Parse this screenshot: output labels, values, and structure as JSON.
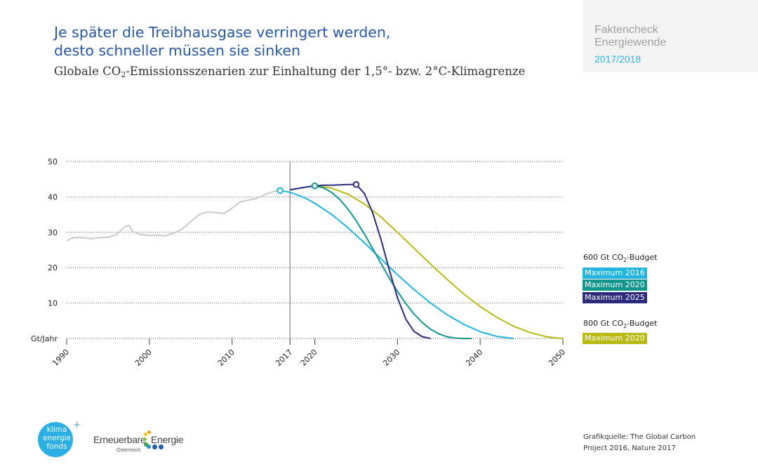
{
  "header": {
    "title_line1": "Je später die Treibhausgase verringert werden,",
    "title_line2": "desto schneller müssen sie sinken",
    "subtitle_pre": "Globale CO",
    "subtitle_sub": "2",
    "subtitle_post": "-Emissionsszenarien zur Einhaltung der 1,5°- bzw. 2°C-Klimagrenze"
  },
  "badge": {
    "line1": "Faktencheck",
    "line2": "Energiewende",
    "line3": "2017/2018"
  },
  "legend": {
    "group1_pre": "600 Gt CO",
    "group1_sub": "2",
    "group1_post": "-Budget",
    "group2_pre": "800 Gt CO",
    "group2_sub": "2",
    "group2_post": "-Budget",
    "items": [
      {
        "label": "Maximum 2016",
        "color": "#1fb5de"
      },
      {
        "label": "Maximum 2020",
        "color": "#12958a"
      },
      {
        "label": "Maximum 2025",
        "color": "#2b2a7c"
      },
      {
        "label": "Maximum 2020",
        "color": "#b9b914"
      }
    ]
  },
  "source": {
    "line1": "Grafikquelle: The Global Carbon",
    "line2": "Project 2016, Nature 2017"
  },
  "logos": {
    "kef_line1": "klima",
    "kef_line2": "energie",
    "kef_line3": "fonds",
    "kef_plus": "+",
    "ee_word1": "Erneuerbare",
    "ee_word2": "Energie",
    "ee_sub": "Österreich"
  },
  "chart_data": {
    "type": "line",
    "ylabel": "Gt/Jahr",
    "xlim": [
      1990,
      2050
    ],
    "ylim": [
      0,
      50
    ],
    "yticks": [
      10,
      20,
      30,
      40,
      50
    ],
    "xticks": [
      "1990",
      "2000",
      "2010",
      "2017",
      "2020",
      "2030",
      "2040",
      "2050"
    ],
    "xtick_values": [
      1990,
      2000,
      2010,
      2017,
      2020,
      2030,
      2040,
      2050
    ],
    "grid": "horizontal dotted",
    "reference_line_x": 2017,
    "historical": {
      "color": "#c8c8c8",
      "x": [
        1990,
        1990.5,
        1991,
        1992,
        1993,
        1994,
        1995,
        1996,
        1997,
        1997.5,
        1998,
        1999,
        2000,
        2001,
        2002,
        2003,
        2004,
        2005,
        2006,
        2007,
        2008,
        2009,
        2010,
        2011,
        2012,
        2013,
        2014,
        2015,
        2016
      ],
      "y": [
        27.5,
        28.3,
        28.5,
        28.5,
        28.2,
        28.5,
        28.6,
        29.3,
        31.5,
        32,
        30.2,
        29.3,
        29.1,
        29.1,
        29.0,
        29.8,
        31.0,
        33.0,
        35.0,
        35.7,
        35.6,
        35.3,
        36.8,
        38.6,
        39.1,
        39.6,
        40.7,
        41.5,
        42.0
      ]
    },
    "series": [
      {
        "name": "Maximum 2016",
        "budget": "600 Gt CO2-Budget",
        "color": "#1fb5de",
        "peak": [
          2015.8,
          41.8
        ],
        "x": [
          2015.8,
          2017,
          2018,
          2019,
          2020,
          2022,
          2024,
          2026,
          2028,
          2030,
          2032,
          2034,
          2036,
          2038,
          2040,
          2042,
          2044
        ],
        "y": [
          41.8,
          41.3,
          40.5,
          39.5,
          38.2,
          35.1,
          31.3,
          27.0,
          22.5,
          18.0,
          13.8,
          10.0,
          6.7,
          4.0,
          1.9,
          0.6,
          0.0
        ]
      },
      {
        "name": "Maximum 2020",
        "budget": "600 Gt CO2-Budget",
        "color": "#12958a",
        "peak": [
          2020,
          43.1
        ],
        "x": [
          2017,
          2018,
          2019,
          2020,
          2021,
          2022,
          2023,
          2024,
          2025,
          2026,
          2027,
          2028,
          2029,
          2030,
          2031,
          2032,
          2033,
          2034,
          2035,
          2036,
          2037,
          2038,
          2039
        ],
        "y": [
          42.0,
          42.4,
          42.8,
          43.1,
          42.6,
          41.3,
          39.3,
          36.6,
          33.3,
          29.5,
          25.4,
          21.2,
          17.1,
          13.3,
          9.9,
          6.9,
          4.5,
          2.6,
          1.3,
          0.5,
          0.1,
          0.0,
          0.0
        ]
      },
      {
        "name": "Maximum 2025",
        "budget": "600 Gt CO2-Budget",
        "color": "#2b2a7c",
        "peak": [
          2025,
          43.5
        ],
        "x": [
          2017,
          2018,
          2019,
          2020,
          2021,
          2022,
          2023,
          2024,
          2025,
          2026,
          2027,
          2028,
          2029,
          2030,
          2031,
          2032,
          2033,
          2034
        ],
        "y": [
          42.0,
          42.4,
          42.8,
          43.1,
          43.3,
          43.3,
          43.4,
          43.5,
          43.5,
          41.0,
          35.5,
          28.0,
          19.5,
          11.5,
          5.5,
          2.0,
          0.5,
          0.0
        ]
      },
      {
        "name": "Maximum 2020",
        "budget": "800 Gt CO2-Budget",
        "color": "#b9b914",
        "x": [
          2020,
          2022,
          2024,
          2026,
          2028,
          2030,
          2032,
          2034,
          2036,
          2038,
          2040,
          2042,
          2044,
          2046,
          2048,
          2049,
          2050
        ],
        "y": [
          43.1,
          42.5,
          40.8,
          38.0,
          34.3,
          30.0,
          25.5,
          21.0,
          16.7,
          12.6,
          9.0,
          6.0,
          3.5,
          1.7,
          0.5,
          0.2,
          0.0
        ]
      }
    ]
  }
}
